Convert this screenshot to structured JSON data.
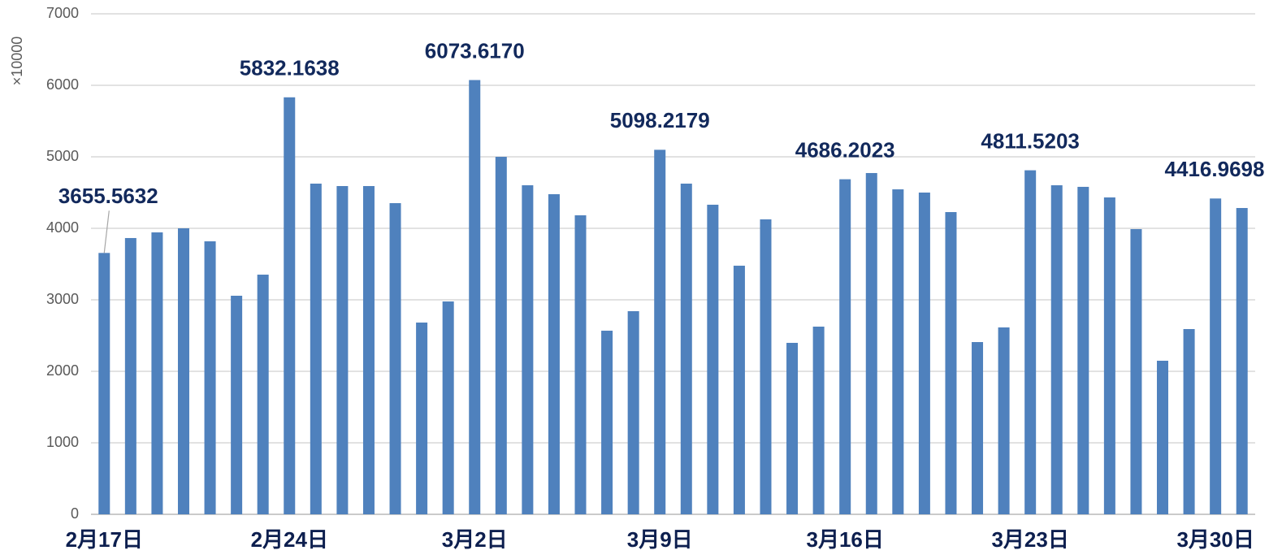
{
  "chart_data": {
    "type": "bar",
    "y_label": "×10000",
    "categories": [
      "2月17日",
      null,
      null,
      null,
      null,
      null,
      null,
      "2月24日",
      null,
      null,
      null,
      null,
      null,
      null,
      "3月2日",
      null,
      null,
      null,
      null,
      null,
      null,
      "3月9日",
      null,
      null,
      null,
      null,
      null,
      null,
      "3月16日",
      null,
      null,
      null,
      null,
      null,
      null,
      "3月23日",
      null,
      null,
      null,
      null,
      null,
      null,
      "3月30日",
      null
    ],
    "values": [
      3655.5632,
      3864,
      3943,
      4000,
      3818,
      3057,
      3352,
      5832.1638,
      4625,
      4591,
      4591,
      4352,
      2682,
      2977,
      6073.617,
      5000,
      4602,
      4477,
      4182,
      2568,
      2841,
      5098.2179,
      4625,
      4330,
      3477,
      4125,
      2398,
      2625,
      4686.2023,
      4773,
      4545,
      4500,
      4227,
      2409,
      2614,
      4811.5203,
      4602,
      4580,
      4432,
      3989,
      2148,
      2591,
      4416.9698,
      4284
    ],
    "value_labels": [
      "3655.5632",
      null,
      null,
      null,
      null,
      null,
      null,
      "5832.1638",
      null,
      null,
      null,
      null,
      null,
      null,
      "6073.6170",
      null,
      null,
      null,
      null,
      null,
      null,
      "5098.2179",
      null,
      null,
      null,
      null,
      null,
      null,
      "4686.2023",
      null,
      null,
      null,
      null,
      null,
      null,
      "4811.5203",
      null,
      null,
      null,
      null,
      null,
      null,
      "4416.9698",
      null
    ],
    "color": "#4f81bd",
    "ylim": [
      0,
      7000
    ],
    "yticks": [
      0,
      1000,
      2000,
      3000,
      4000,
      5000,
      6000,
      7000
    ],
    "grid": true
  }
}
